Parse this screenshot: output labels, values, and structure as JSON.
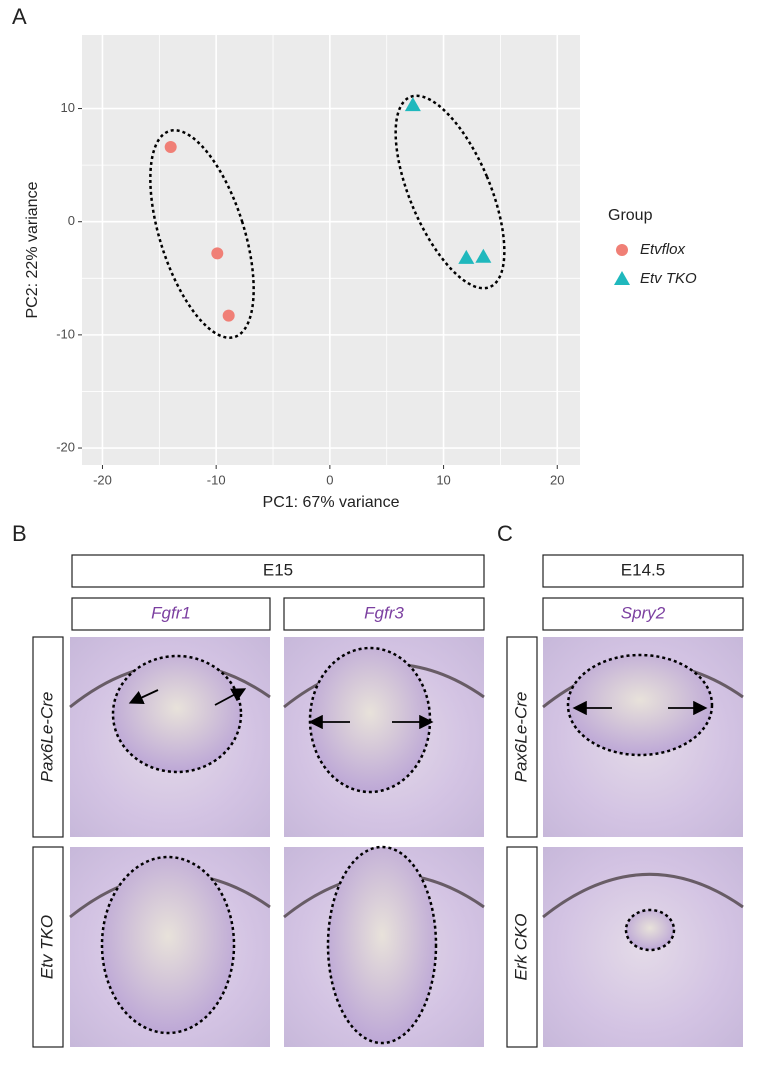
{
  "panel_labels": [
    "A",
    "B",
    "C"
  ],
  "chart_data": {
    "type": "scatter",
    "xlabel": "PC1: 67% variance",
    "ylabel": "PC2: 22% variance",
    "legend_title": "Group",
    "xlim": [
      -21.8,
      22
    ],
    "ylim": [
      -21.5,
      16.5
    ],
    "xticks": [
      -20,
      -10,
      0,
      10,
      20
    ],
    "yticks": [
      -20,
      -10,
      0,
      10
    ],
    "grid": true,
    "series": [
      {
        "name": "Etvflox",
        "color": "#f07f76",
        "marker": "circle",
        "x": [
          -14,
          -9.9,
          -8.9
        ],
        "y": [
          6.6,
          -2.8,
          -8.3
        ]
      },
      {
        "name": "Etv TKO",
        "color": "#1fb8bd",
        "marker": "triangle",
        "x": [
          7.3,
          12.0,
          13.5
        ],
        "y": [
          10.3,
          -3.2,
          -3.1
        ]
      }
    ]
  },
  "panel_b": {
    "header": "E15",
    "columns": [
      "Fgfr1",
      "Fgfr3"
    ],
    "rows": [
      "Pax6Le-Cre",
      "Etv TKO"
    ]
  },
  "panel_c": {
    "header": "E14.5",
    "columns": [
      "Spry2"
    ],
    "rows": [
      "Pax6Le-Cre",
      "Erk CKO"
    ]
  }
}
